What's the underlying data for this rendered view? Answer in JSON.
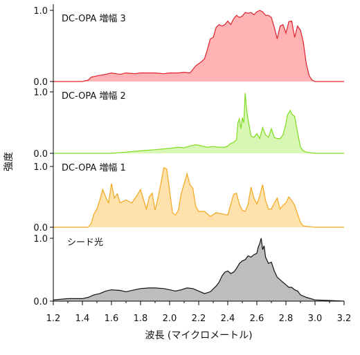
{
  "chart_data": {
    "type": "area",
    "xlabel": "波長 (マイクロメートル)",
    "ylabel": "強度",
    "xlim": [
      1.2,
      3.2
    ],
    "x_ticks": [
      "1.2",
      "1.4",
      "1.6",
      "1.8",
      "2.0",
      "2.2",
      "2.4",
      "2.6",
      "2.8",
      "3.0",
      "3.2"
    ],
    "y_ticks": [
      "0.0",
      "1.0"
    ],
    "grid": false,
    "series": [
      {
        "name": "DC-OPA 増幅 3",
        "color": "#e0202a",
        "fill": "#ffb3b5",
        "x": [
          1.2,
          1.4,
          1.44,
          1.46,
          1.5,
          1.56,
          1.6,
          1.66,
          1.7,
          1.76,
          1.8,
          1.86,
          1.9,
          1.96,
          2.0,
          2.06,
          2.1,
          2.14,
          2.18,
          2.22,
          2.24,
          2.26,
          2.28,
          2.3,
          2.32,
          2.34,
          2.36,
          2.38,
          2.4,
          2.42,
          2.44,
          2.46,
          2.48,
          2.5,
          2.52,
          2.54,
          2.56,
          2.58,
          2.6,
          2.62,
          2.64,
          2.66,
          2.68,
          2.7,
          2.72,
          2.74,
          2.76,
          2.78,
          2.8,
          2.82,
          2.84,
          2.86,
          2.88,
          2.9,
          2.92,
          2.94,
          2.96,
          2.98,
          3.0,
          3.2
        ],
        "y": [
          0.0,
          0.0,
          0.02,
          0.06,
          0.08,
          0.1,
          0.12,
          0.1,
          0.12,
          0.11,
          0.12,
          0.12,
          0.12,
          0.11,
          0.12,
          0.12,
          0.13,
          0.12,
          0.22,
          0.28,
          0.32,
          0.45,
          0.6,
          0.62,
          0.76,
          0.8,
          0.78,
          0.8,
          0.85,
          0.8,
          0.88,
          0.93,
          0.9,
          0.92,
          0.97,
          0.96,
          0.97,
          0.94,
          0.98,
          1.0,
          0.98,
          0.93,
          0.93,
          0.9,
          0.76,
          0.6,
          0.78,
          0.8,
          0.68,
          0.84,
          0.85,
          0.62,
          0.78,
          0.72,
          0.55,
          0.25,
          0.08,
          0.02,
          0.0,
          0.0
        ]
      },
      {
        "name": "DC-OPA 増幅 2",
        "color": "#7ddc1f",
        "fill": "#d8f7b4",
        "x": [
          1.2,
          1.6,
          1.7,
          1.8,
          1.9,
          2.0,
          2.06,
          2.1,
          2.14,
          2.18,
          2.22,
          2.26,
          2.3,
          2.34,
          2.38,
          2.4,
          2.42,
          2.44,
          2.46,
          2.47,
          2.48,
          2.49,
          2.5,
          2.51,
          2.52,
          2.53,
          2.54,
          2.56,
          2.58,
          2.6,
          2.62,
          2.64,
          2.66,
          2.68,
          2.7,
          2.72,
          2.74,
          2.76,
          2.78,
          2.8,
          2.81,
          2.82,
          2.83,
          2.84,
          2.86,
          2.88,
          2.9,
          2.92,
          2.94,
          3.0,
          3.2
        ],
        "y": [
          0.0,
          0.0,
          0.02,
          0.04,
          0.06,
          0.08,
          0.1,
          0.09,
          0.12,
          0.14,
          0.12,
          0.1,
          0.11,
          0.1,
          0.1,
          0.12,
          0.16,
          0.18,
          0.22,
          0.5,
          0.56,
          0.4,
          0.58,
          0.5,
          0.98,
          0.7,
          0.55,
          0.28,
          0.26,
          0.32,
          0.24,
          0.42,
          0.3,
          0.26,
          0.4,
          0.26,
          0.24,
          0.24,
          0.3,
          0.48,
          0.62,
          0.66,
          0.7,
          0.64,
          0.6,
          0.34,
          0.1,
          0.04,
          0.02,
          0.0,
          0.0
        ]
      },
      {
        "name": "DC-OPA 増幅 1",
        "color": "#f2a81e",
        "fill": "#ffe1ac",
        "x": [
          1.2,
          1.44,
          1.46,
          1.48,
          1.5,
          1.52,
          1.54,
          1.56,
          1.58,
          1.6,
          1.62,
          1.64,
          1.66,
          1.7,
          1.74,
          1.78,
          1.8,
          1.84,
          1.86,
          1.88,
          1.9,
          1.92,
          1.94,
          1.96,
          1.98,
          2.0,
          2.02,
          2.04,
          2.06,
          2.08,
          2.1,
          2.12,
          2.14,
          2.16,
          2.18,
          2.2,
          2.24,
          2.28,
          2.32,
          2.36,
          2.4,
          2.44,
          2.46,
          2.48,
          2.5,
          2.52,
          2.54,
          2.56,
          2.58,
          2.6,
          2.62,
          2.64,
          2.66,
          2.68,
          2.7,
          2.72,
          2.74,
          2.76,
          2.78,
          2.8,
          2.82,
          2.84,
          2.86,
          2.88,
          2.9,
          2.92,
          3.0,
          3.2
        ],
        "y": [
          0.0,
          0.0,
          0.06,
          0.22,
          0.3,
          0.45,
          0.62,
          0.5,
          0.4,
          0.72,
          0.48,
          0.55,
          0.4,
          0.45,
          0.4,
          0.54,
          0.62,
          0.3,
          0.5,
          0.56,
          0.28,
          0.48,
          0.72,
          0.98,
          0.96,
          0.6,
          0.24,
          0.2,
          0.28,
          0.56,
          0.72,
          0.88,
          0.7,
          0.64,
          0.34,
          0.26,
          0.26,
          0.18,
          0.24,
          0.22,
          0.2,
          0.54,
          0.56,
          0.38,
          0.28,
          0.26,
          0.38,
          0.66,
          0.48,
          0.38,
          0.52,
          0.7,
          0.44,
          0.3,
          0.3,
          0.4,
          0.48,
          0.3,
          0.36,
          0.4,
          0.5,
          0.44,
          0.36,
          0.22,
          0.08,
          0.02,
          0.0,
          0.0
        ]
      },
      {
        "name": "シード光",
        "color": "#111111",
        "fill": "#bdbdbd",
        "x": [
          1.2,
          1.3,
          1.4,
          1.44,
          1.48,
          1.52,
          1.56,
          1.6,
          1.66,
          1.7,
          1.76,
          1.8,
          1.86,
          1.9,
          1.96,
          2.0,
          2.04,
          2.08,
          2.12,
          2.16,
          2.2,
          2.24,
          2.28,
          2.32,
          2.34,
          2.36,
          2.38,
          2.4,
          2.42,
          2.44,
          2.46,
          2.48,
          2.5,
          2.52,
          2.54,
          2.56,
          2.58,
          2.6,
          2.61,
          2.62,
          2.63,
          2.64,
          2.65,
          2.66,
          2.68,
          2.7,
          2.72,
          2.74,
          2.76,
          2.78,
          2.8,
          2.82,
          2.84,
          2.86,
          2.88,
          2.9,
          2.94,
          3.0,
          3.2
        ],
        "y": [
          0.02,
          0.04,
          0.04,
          0.06,
          0.1,
          0.12,
          0.16,
          0.18,
          0.17,
          0.15,
          0.18,
          0.2,
          0.21,
          0.21,
          0.2,
          0.18,
          0.16,
          0.18,
          0.21,
          0.2,
          0.16,
          0.12,
          0.15,
          0.24,
          0.3,
          0.4,
          0.46,
          0.48,
          0.44,
          0.46,
          0.52,
          0.6,
          0.64,
          0.66,
          0.72,
          0.7,
          0.74,
          0.76,
          0.86,
          0.92,
          1.0,
          0.82,
          0.88,
          0.7,
          0.6,
          0.62,
          0.48,
          0.38,
          0.34,
          0.3,
          0.26,
          0.22,
          0.22,
          0.18,
          0.16,
          0.1,
          0.06,
          0.02,
          0.0
        ]
      }
    ]
  }
}
